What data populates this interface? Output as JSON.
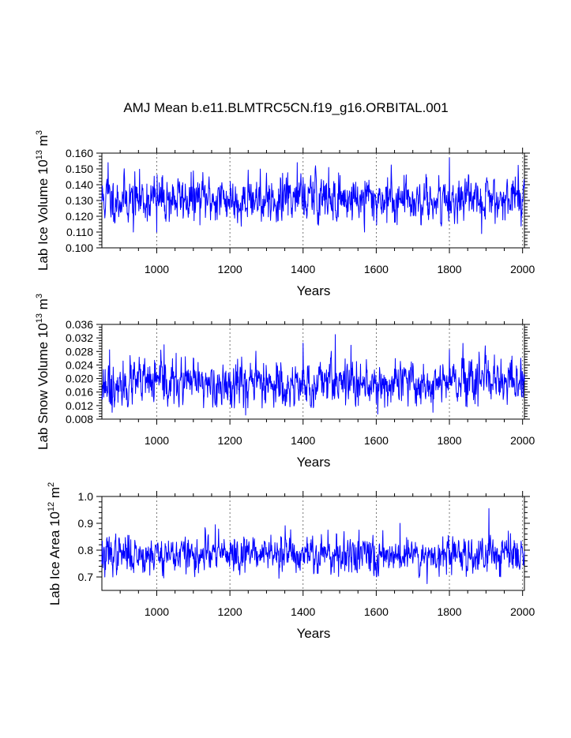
{
  "title": "AMJ Mean b.e11.BLMTRC5CN.f19_g16.ORBITAL.001",
  "colors": {
    "series": "#0000ff",
    "axis": "#000000",
    "grid": "#555555"
  },
  "chart_data": [
    {
      "type": "line",
      "panel": "ice-volume",
      "ylabel": {
        "text": "Lab Ice Volume 10",
        "exp": "13",
        "unit": " m",
        "unit_exp": "3"
      },
      "xlabel": "Years",
      "xlim": [
        850,
        2005
      ],
      "ylim": [
        0.1,
        0.16
      ],
      "xticks": [
        1000,
        1200,
        1400,
        1600,
        1800,
        2000
      ],
      "xtick_labels": [
        "1000",
        "1200",
        "1400",
        "1600",
        "1800",
        "2000"
      ],
      "yticks": [
        0.1,
        0.11,
        0.12,
        0.13,
        0.14,
        0.15,
        0.16
      ],
      "ytick_labels": [
        "0.100",
        "0.110",
        "0.120",
        "0.130",
        "0.140",
        "0.150",
        "0.160"
      ],
      "series": {
        "name": "Lab Ice Volume",
        "x_start": 850,
        "x_end": 2005,
        "mean": 0.131,
        "sd": 0.0075,
        "vmin": 0.109,
        "vmax": 0.157,
        "seed": 11,
        "peaks": [
          [
            867,
            0.154
          ],
          [
            1384,
            0.154
          ],
          [
            1800,
            0.157
          ]
        ],
        "troughs": [
          [
            936,
            0.11
          ],
          [
            1000,
            0.11
          ],
          [
            1568,
            0.11
          ],
          [
            1888,
            0.109
          ]
        ]
      }
    },
    {
      "type": "line",
      "panel": "snow-volume",
      "ylabel": {
        "text": "Lab Snow Volume 10",
        "exp": "13",
        "unit": " m",
        "unit_exp": "3"
      },
      "xlabel": "Years",
      "xlim": [
        850,
        2005
      ],
      "ylim": [
        0.008,
        0.036
      ],
      "xticks": [
        1000,
        1200,
        1400,
        1600,
        1800,
        2000
      ],
      "xtick_labels": [
        "1000",
        "1200",
        "1400",
        "1600",
        "1800",
        "2000"
      ],
      "yticks": [
        0.008,
        0.012,
        0.016,
        0.02,
        0.024,
        0.028,
        0.032,
        0.036
      ],
      "ytick_labels": [
        "0.008",
        "0.012",
        "0.016",
        "0.020",
        "0.024",
        "0.028",
        "0.032",
        "0.036"
      ],
      "series": {
        "name": "Lab Snow Volume",
        "x_start": 850,
        "x_end": 2005,
        "mean": 0.0185,
        "sd": 0.0034,
        "vmin": 0.0092,
        "vmax": 0.033,
        "seed": 23,
        "peaks": [
          [
            871,
            0.0285
          ],
          [
            1020,
            0.03
          ],
          [
            1400,
            0.0305
          ],
          [
            1488,
            0.033
          ],
          [
            1800,
            0.0285
          ]
        ],
        "troughs": [
          [
            878,
            0.01
          ],
          [
            1243,
            0.0092
          ],
          [
            1604,
            0.0095
          ],
          [
            1755,
            0.01
          ]
        ]
      }
    },
    {
      "type": "line",
      "panel": "ice-area",
      "ylabel": {
        "text": "Lab Ice Area 10",
        "exp": "12",
        "unit": " m",
        "unit_exp": "2"
      },
      "xlabel": "Years",
      "xlim": [
        850,
        2005
      ],
      "ylim": [
        0.65,
        1.0
      ],
      "xticks": [
        1000,
        1200,
        1400,
        1600,
        1800,
        2000
      ],
      "xtick_labels": [
        "1000",
        "1200",
        "1400",
        "1600",
        "1800",
        "2000"
      ],
      "yticks": [
        0.7,
        0.8,
        0.9,
        1.0
      ],
      "ytick_labels": [
        "0.7",
        "0.8",
        "0.9",
        "1.0"
      ],
      "series": {
        "name": "Lab Ice Area",
        "x_start": 850,
        "x_end": 2005,
        "mean": 0.785,
        "sd": 0.035,
        "vmin": 0.675,
        "vmax": 0.955,
        "seed": 37,
        "peaks": [
          [
            1160,
            0.895
          ],
          [
            1665,
            0.9
          ],
          [
            1908,
            0.955
          ]
        ],
        "troughs": [
          [
            858,
            0.7
          ],
          [
            1334,
            0.695
          ],
          [
            1739,
            0.675
          ]
        ]
      }
    }
  ]
}
